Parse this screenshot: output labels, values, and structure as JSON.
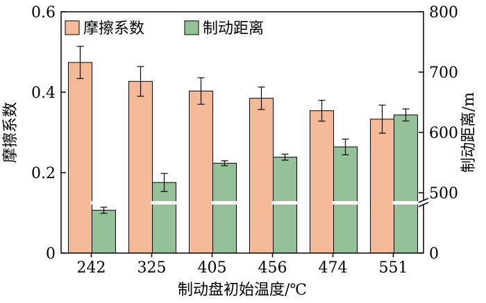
{
  "chart_data": {
    "type": "bar",
    "categories": [
      "242",
      "325",
      "405",
      "456",
      "474",
      "551"
    ],
    "xlabel": "制动盘初始温度/℃",
    "y_left": {
      "label": "摩擦系数",
      "ylim": [
        0,
        0.6
      ],
      "ticks": [
        "0",
        "0.2",
        "0.4",
        "0.6"
      ]
    },
    "y_right": {
      "label": "制动距离/m",
      "ylim_broken": [
        400,
        800
      ],
      "ticks": [
        "0",
        "500",
        "600",
        "700",
        "800"
      ],
      "axis_break": true
    },
    "series": [
      {
        "name": "摩擦系数",
        "axis": "left",
        "color": "#f4b996",
        "values": [
          0.474,
          0.427,
          0.403,
          0.385,
          0.354,
          0.333
        ],
        "errors": [
          0.04,
          0.037,
          0.033,
          0.028,
          0.026,
          0.035
        ]
      },
      {
        "name": "制动距离",
        "axis": "right",
        "color": "#94c197",
        "values": [
          471,
          517,
          549,
          559,
          576,
          629
        ],
        "errors": [
          5,
          15,
          4,
          5,
          13,
          10
        ]
      }
    ],
    "legend_position": "top-left",
    "grid": false
  }
}
